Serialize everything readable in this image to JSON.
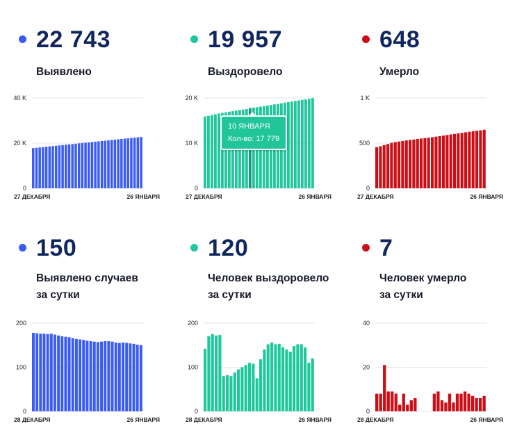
{
  "panels": [
    {
      "value": "22 743",
      "label1": "Выявлено",
      "label2": "",
      "color": "#3a5cf4"
    },
    {
      "value": "19 957",
      "label1": "Выздоровело",
      "label2": "",
      "color": "#1fc79d"
    },
    {
      "value": "648",
      "label1": "Умерло",
      "label2": "",
      "color": "#cc0f17"
    },
    {
      "value": "150",
      "label1": "Выявлено случаев",
      "label2": "за сутки",
      "color": "#3a5cf4"
    },
    {
      "value": "120",
      "label1": "Человек выздоровело",
      "label2": "за сутки",
      "color": "#1fc79d"
    },
    {
      "value": "7",
      "label1": "Человек умерло",
      "label2": "за сутки",
      "color": "#cc0f17"
    }
  ],
  "tooltip": {
    "date": "10 ЯНВАРЯ",
    "count": "Кол-во: 17 779"
  },
  "chart_data": [
    {
      "type": "bar",
      "x_start": "27 ДЕКАБРЯ",
      "x_end": "26 ЯНВАРЯ",
      "ylim": [
        0,
        40000
      ],
      "yticks": [
        {
          "v": 0,
          "t": "0"
        },
        {
          "v": 20000,
          "t": "20 K"
        },
        {
          "v": 40000,
          "t": "40 K"
        }
      ],
      "values": [
        17800,
        17950,
        18100,
        18250,
        18400,
        18550,
        18700,
        18850,
        19000,
        19150,
        19300,
        19450,
        19600,
        19750,
        19900,
        20050,
        20200,
        20350,
        20500,
        20650,
        20800,
        20950,
        21100,
        21250,
        21400,
        21550,
        21700,
        21850,
        22000,
        22150,
        22300,
        22450,
        22600,
        22743
      ]
    },
    {
      "type": "bar",
      "x_start": "27 ДЕКАБРЯ",
      "x_end": "26 ЯНВАРЯ",
      "ylim": [
        0,
        20000
      ],
      "yticks": [
        {
          "v": 0,
          "t": "0"
        },
        {
          "v": 10000,
          "t": "10 K"
        },
        {
          "v": 20000,
          "t": "20 K"
        }
      ],
      "highlight": 13,
      "values": [
        15900,
        16050,
        16200,
        16380,
        16550,
        16680,
        16820,
        16950,
        17080,
        17200,
        17320,
        17430,
        17540,
        17779,
        17870,
        17950,
        18080,
        18200,
        18320,
        18450,
        18570,
        18700,
        18820,
        18950,
        19080,
        19210,
        19340,
        19460,
        19580,
        19690,
        19790,
        19957
      ]
    },
    {
      "type": "bar",
      "x_start": "27 ДЕКАБРЯ",
      "x_end": "26 ЯНВАРЯ",
      "ylim": [
        0,
        1000
      ],
      "yticks": [
        {
          "v": 0,
          "t": "0"
        },
        {
          "v": 500,
          "t": "500"
        },
        {
          "v": 1000,
          "t": "1 K"
        }
      ],
      "values": [
        455,
        465,
        478,
        490,
        503,
        512,
        518,
        524,
        530,
        536,
        540,
        546,
        551,
        556,
        560,
        566,
        572,
        578,
        584,
        590,
        596,
        602,
        608,
        614,
        620,
        626,
        632,
        638,
        642,
        648
      ]
    },
    {
      "type": "bar",
      "x_start": "28 ДЕКАБРЯ",
      "x_end": "26 ЯНВАРЯ",
      "ylim": [
        0,
        200
      ],
      "yticks": [
        {
          "v": 0,
          "t": "0"
        },
        {
          "v": 100,
          "t": "100"
        },
        {
          "v": 200,
          "t": "200"
        }
      ],
      "values": [
        178,
        177,
        176,
        176,
        175,
        176,
        174,
        172,
        170,
        169,
        168,
        166,
        164,
        163,
        162,
        160,
        159,
        158,
        157,
        158,
        159,
        159,
        158,
        156,
        155,
        156,
        155,
        154,
        153,
        151,
        150
      ]
    },
    {
      "type": "bar",
      "x_start": "28 ДЕКАБРЯ",
      "x_end": "26 ЯНВАРЯ",
      "ylim": [
        0,
        200
      ],
      "yticks": [
        {
          "v": 0,
          "t": "0"
        },
        {
          "v": 100,
          "t": "100"
        },
        {
          "v": 200,
          "t": "200"
        }
      ],
      "values": [
        142,
        170,
        175,
        172,
        173,
        80,
        82,
        80,
        88,
        95,
        100,
        105,
        110,
        108,
        75,
        118,
        140,
        152,
        156,
        152,
        153,
        145,
        140,
        135,
        148,
        152,
        152,
        145,
        110,
        120
      ]
    },
    {
      "type": "bar",
      "x_start": "28 ДЕКАБРЯ",
      "x_end": "26 ЯНВАРЯ",
      "ylim": [
        0,
        40
      ],
      "yticks": [
        {
          "v": 0,
          "t": "0"
        },
        {
          "v": 20,
          "t": "20"
        },
        {
          "v": 40,
          "t": "40"
        }
      ],
      "values": [
        8,
        8,
        21,
        9,
        9,
        8,
        3,
        8,
        3,
        5,
        6,
        0,
        0,
        0,
        0,
        8,
        9,
        5,
        4,
        8,
        4,
        8,
        8,
        9,
        8,
        7,
        6,
        6,
        7
      ]
    }
  ]
}
